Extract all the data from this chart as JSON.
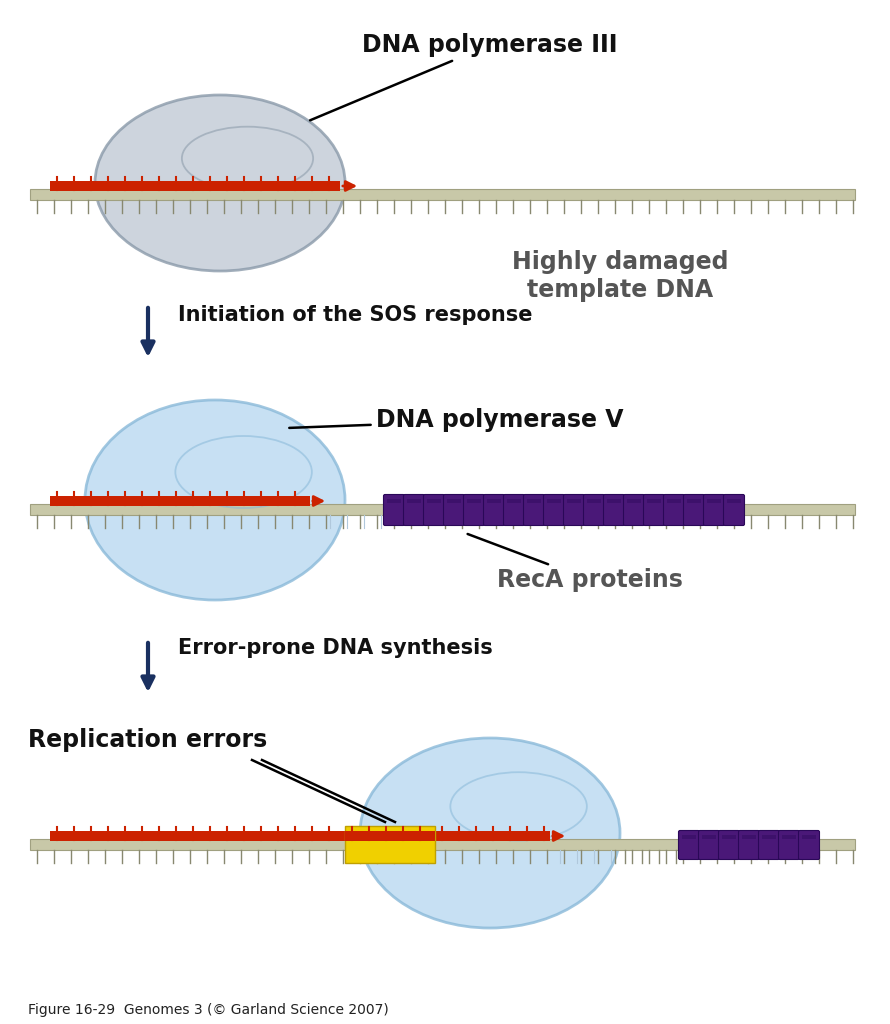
{
  "bg_color": "#ffffff",
  "dna_backbone_color": "#c8c8a8",
  "dna_backbone_edge": "#a0a080",
  "new_strand_color": "#cc2200",
  "template_tick_color": "#888870",
  "polIII_color": "#c0c8d4",
  "polIII_edge": "#8898a8",
  "polV_color": "#b8d8f0",
  "polV_edge": "#88b8d8",
  "recA_color": "#4a1878",
  "recA_edge": "#2a0858",
  "yellow_color": "#f0d000",
  "yellow_edge": "#c0a000",
  "arrow_color": "#1a3060",
  "label1": "DNA polymerase III",
  "label2": "Highly damaged\ntemplate DNA",
  "label3": "Initiation of the SOS response",
  "label4": "DNA polymerase V",
  "label5": "RecA proteins",
  "label6": "Error-prone DNA synthesis",
  "label7": "Replication errors",
  "caption": "Figure 16-29  Genomes 3 (© Garland Science 2007)"
}
